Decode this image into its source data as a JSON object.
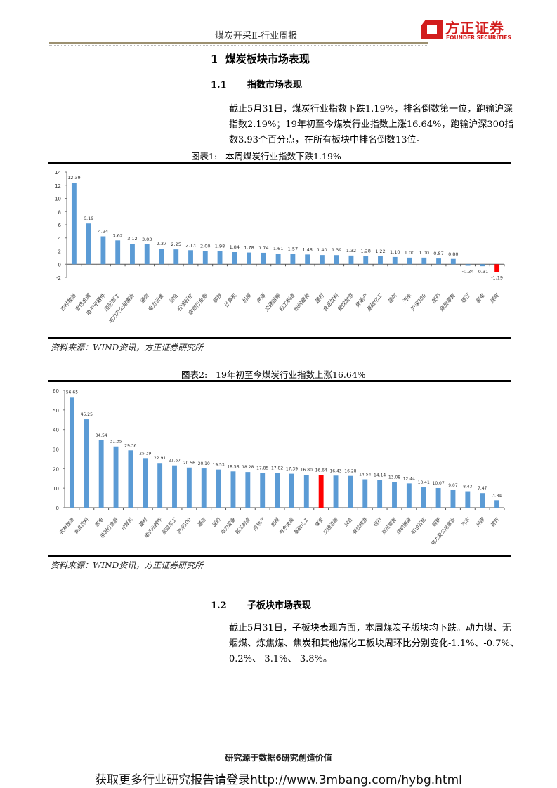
{
  "header": {
    "doc_title": "煤炭开采Ⅱ-行业周报",
    "logo_cn": "方正证券",
    "logo_en": "FOUNDER SECURITIES",
    "brand_color": "#d21d1d"
  },
  "section1": {
    "title": "1  煤炭板块市场表现",
    "sub1": {
      "num": "1.1",
      "title": "指数市场表现",
      "paragraph": "截止5月31日，煤炭行业指数下跌1.19%，排名倒数第一位，跑输沪深指数2.19%；19年初至今煤炭行业指数上涨16.64%，跑输沪深300指数3.93个百分点，在所有板块中排名倒数13位。"
    },
    "figure1": {
      "caption": "图表1:   本周煤炭行业指数下跌1.19%",
      "source": "资料来源：WIND资讯，方正证券研究所"
    },
    "figure2": {
      "caption": "图表2:   19年初至今煤炭行业指数上涨16.64%",
      "source": "资料来源：WIND资讯，方正证券研究所"
    },
    "sub2": {
      "num": "1.2",
      "title": "子板块市场表现",
      "paragraph": "截止5月31日，子板块表现方面，本周煤炭子版块均下跌。动力煤、无烟煤、炼焦煤、焦炭和其他煤化工板块周环比分别变化-1.1%、-0.7%、0.2%、-3.1%、-3.8%。"
    }
  },
  "footer": {
    "slogan": "研究源于数据6研究创造价值",
    "promo": "获取更多行业研究报告请登录http://www.3mbang.com/hybg.html"
  },
  "colors": {
    "bar": "#5b9bd5",
    "highlight": "#ff0000"
  },
  "chart_data": [
    {
      "type": "bar",
      "title": "本周煤炭行业指数下跌1.19%",
      "xlabel": "",
      "ylabel": "",
      "ylim": [
        -2,
        14
      ],
      "yticks": [
        -2,
        0,
        2,
        4,
        6,
        8,
        10,
        12,
        14
      ],
      "grid": false,
      "legend": "none",
      "highlight": "煤炭",
      "categories": [
        "农林牧渔",
        "有色金属",
        "电子元器件",
        "国防军工",
        "电力及公用事业",
        "通信",
        "电力设备",
        "综合",
        "石油石化",
        "非银行金融",
        "钢铁",
        "计算机",
        "机械",
        "传媒",
        "交通运输",
        "轻工制造",
        "纺织服装",
        "建材",
        "食品饮料",
        "餐饮旅游",
        "房地产",
        "基础化工",
        "建筑",
        "汽车",
        "沪深300",
        "医药",
        "商贸零售",
        "银行",
        "家电",
        "煤炭"
      ],
      "values": [
        12.39,
        6.19,
        4.24,
        3.62,
        3.12,
        3.03,
        2.37,
        2.25,
        2.13,
        2.0,
        1.98,
        1.84,
        1.78,
        1.74,
        1.61,
        1.57,
        1.48,
        1.4,
        1.39,
        1.32,
        1.28,
        1.22,
        1.1,
        1.0,
        1.0,
        0.87,
        0.8,
        -0.24,
        -0.31,
        -1.19
      ],
      "labels": [
        "12.39",
        "6.19",
        "4.24",
        "3.62",
        "3.12",
        "3.03",
        "2.37",
        "2.25",
        "2.13",
        "2.00",
        "1.98",
        "1.84",
        "1.78",
        "1.74",
        "1.61",
        "1.57",
        "1.48",
        "1.40",
        "1.39",
        "1.32",
        "1.28",
        "1.22",
        "1.10",
        "1.00",
        "1.00",
        "0.87",
        "0.80",
        "-0.24",
        "-0.31",
        "-1.19"
      ]
    },
    {
      "type": "bar",
      "title": "19年初至今煤炭行业指数上涨16.64%",
      "xlabel": "",
      "ylabel": "",
      "ylim": [
        0,
        60
      ],
      "yticks": [
        0,
        10,
        20,
        30,
        40,
        50,
        60
      ],
      "grid": false,
      "legend": "none",
      "highlight": "煤炭",
      "categories": [
        "农林牧渔",
        "食品饮料",
        "家电",
        "非银行金融",
        "计算机",
        "建材",
        "电子元器件",
        "国防军工",
        "沪深300",
        "通信",
        "医药",
        "电力设备",
        "轻工制造",
        "房地产",
        "机械",
        "有色金属",
        "基础化工",
        "煤炭",
        "交通运输",
        "综合",
        "餐饮旅游",
        "银行",
        "商贸零售",
        "纺织服装",
        "石油石化",
        "钢铁",
        "电力及公用事业",
        "汽车",
        "传媒",
        "建筑"
      ],
      "values": [
        56.65,
        45.25,
        34.54,
        31.35,
        29.36,
        25.39,
        22.91,
        21.67,
        20.56,
        20.1,
        19.53,
        18.58,
        18.28,
        17.85,
        17.82,
        17.39,
        16.8,
        16.64,
        16.43,
        16.28,
        14.54,
        14.14,
        13.08,
        12.44,
        10.41,
        10.07,
        9.07,
        8.43,
        7.47,
        3.84
      ],
      "labels": [
        "56.65",
        "45.25",
        "34.54",
        "31.35",
        "29.36",
        "25.39",
        "22.91",
        "21.67",
        "20.56",
        "20.10",
        "19.53",
        "18.58",
        "18.28",
        "17.85",
        "17.82",
        "17.39",
        "16.80",
        "16.64",
        "16.43",
        "16.28",
        "14.54",
        "14.14",
        "13.08",
        "12.44",
        "10.41",
        "10.07",
        "9.07",
        "8.43",
        "7.47",
        "3.84"
      ]
    }
  ]
}
